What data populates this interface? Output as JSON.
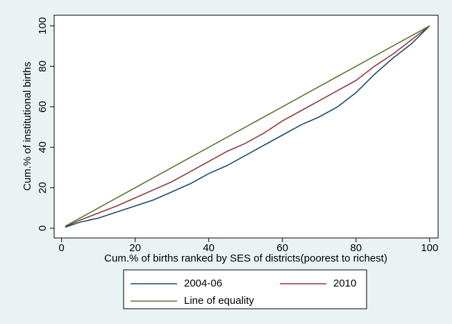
{
  "chart_data": {
    "type": "line",
    "x_label": "Cum.% of births ranked by SES of districts(poorest to richest)",
    "y_label": "Cum.% of institutional births",
    "x": [
      1,
      5,
      10,
      15,
      20,
      25,
      30,
      35,
      40,
      45,
      50,
      55,
      60,
      65,
      70,
      75,
      80,
      85,
      90,
      95,
      100
    ],
    "series": [
      {
        "name": "2004-06",
        "color": "#1a476f",
        "values": [
          0.5,
          3,
          5,
          8,
          11,
          14,
          18,
          22,
          27,
          31,
          36,
          41,
          46,
          51,
          55,
          60,
          67,
          76,
          84,
          91,
          100
        ]
      },
      {
        "name": "2010",
        "color": "#90353b",
        "values": [
          0.8,
          4,
          7.5,
          11,
          15,
          19,
          23,
          28,
          33,
          38,
          42,
          47,
          53,
          58,
          63,
          68,
          73,
          80,
          86,
          93,
          100
        ]
      },
      {
        "name": "Line of equality",
        "color": "#55752f",
        "values": [
          1,
          5,
          10,
          15,
          20,
          25,
          30,
          35,
          40,
          45,
          50,
          55,
          60,
          65,
          70,
          75,
          80,
          85,
          90,
          95,
          100
        ]
      }
    ],
    "xlim": [
      -2,
      102.3
    ],
    "ylim": [
      -4.8,
      105.2
    ],
    "xticks": [
      0,
      20,
      40,
      60,
      80,
      100
    ],
    "yticks": [
      0,
      20,
      40,
      60,
      80,
      100
    ],
    "legend": "bottom"
  }
}
